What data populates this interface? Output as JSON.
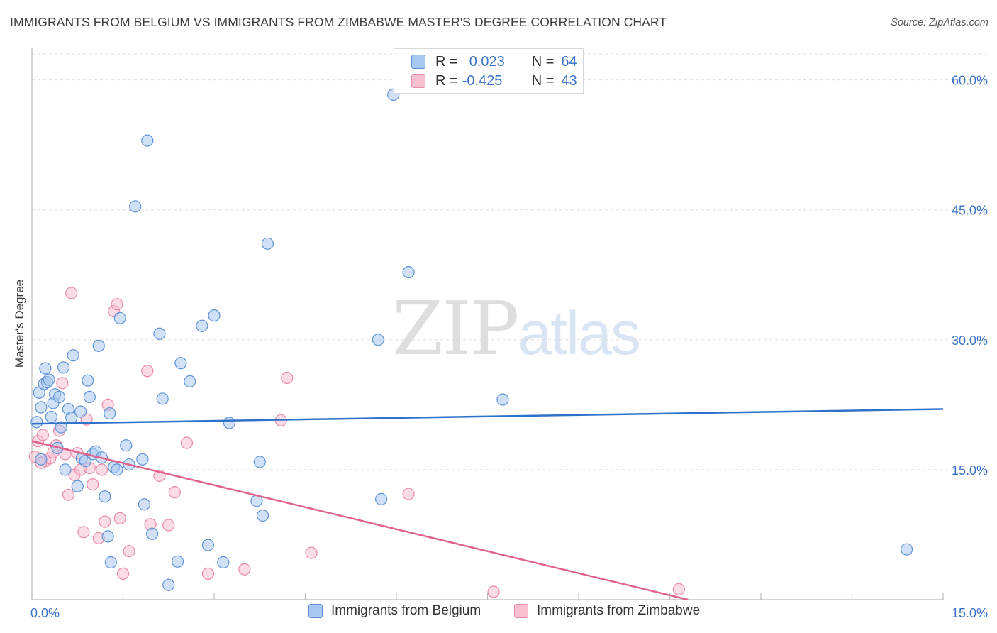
{
  "title": "IMMIGRANTS FROM BELGIUM VS IMMIGRANTS FROM ZIMBABWE MASTER'S DEGREE CORRELATION CHART",
  "source": "Source: ZipAtlas.com",
  "watermark": {
    "zip": "ZIP",
    "atlas": "atlas"
  },
  "legend": {
    "belgium": {
      "r_label": "R =",
      "r_value": "0.023",
      "n_label": "N =",
      "n_value": "64"
    },
    "zimbabwe": {
      "r_label": "R =",
      "r_value": "-0.425",
      "n_label": "N =",
      "n_value": "43"
    }
  },
  "colors": {
    "belgium_fill": "#a9c8f0",
    "belgium_stroke": "#5f93d6",
    "belgium_line": "#2f72c9",
    "zimbabwe_fill": "#f7bfd0",
    "zimbabwe_stroke": "#e98aa8",
    "zimbabwe_line": "#e0638e",
    "tick_label": "#3a72c6",
    "grid": "#dddddd"
  },
  "chart_data": {
    "type": "scatter",
    "title": "IMMIGRANTS FROM BELGIUM VS IMMIGRANTS FROM ZIMBABWE MASTER'S DEGREE CORRELATION CHART",
    "xlabel": "",
    "ylabel": "Master's Degree",
    "xlim": [
      0,
      15
    ],
    "ylim": [
      0,
      63
    ],
    "x_tick_labels": [
      "0.0%",
      "15.0%"
    ],
    "y_ticks": [
      15,
      30,
      45,
      60
    ],
    "y_tick_labels": [
      "15.0%",
      "30.0%",
      "45.0%",
      "60.0%"
    ],
    "series": [
      {
        "name": "Immigrants from Belgium",
        "R": 0.023,
        "N": 64,
        "trend": {
          "x": [
            0,
            15
          ],
          "y": [
            20.3,
            22.0
          ]
        },
        "points": [
          [
            0.08,
            20.5
          ],
          [
            0.12,
            23.9
          ],
          [
            0.15,
            22.2
          ],
          [
            0.2,
            24.9
          ],
          [
            0.22,
            26.7
          ],
          [
            0.25,
            25.1
          ],
          [
            0.28,
            25.4
          ],
          [
            0.32,
            21.1
          ],
          [
            0.35,
            22.7
          ],
          [
            0.38,
            23.7
          ],
          [
            0.42,
            17.5
          ],
          [
            0.45,
            23.4
          ],
          [
            0.48,
            19.9
          ],
          [
            0.52,
            26.8
          ],
          [
            0.55,
            15.0
          ],
          [
            0.6,
            22.0
          ],
          [
            0.65,
            21.0
          ],
          [
            0.68,
            28.2
          ],
          [
            0.75,
            13.1
          ],
          [
            0.8,
            21.7
          ],
          [
            0.82,
            16.3
          ],
          [
            0.88,
            16.0
          ],
          [
            0.92,
            25.3
          ],
          [
            0.95,
            23.4
          ],
          [
            1.0,
            16.8
          ],
          [
            1.05,
            17.1
          ],
          [
            1.1,
            29.3
          ],
          [
            1.15,
            16.4
          ],
          [
            1.2,
            11.9
          ],
          [
            1.25,
            7.3
          ],
          [
            1.28,
            21.5
          ],
          [
            1.3,
            4.3
          ],
          [
            1.35,
            15.3
          ],
          [
            1.4,
            15.0
          ],
          [
            1.45,
            32.5
          ],
          [
            1.55,
            17.8
          ],
          [
            1.6,
            15.6
          ],
          [
            1.7,
            45.4
          ],
          [
            1.82,
            16.2
          ],
          [
            1.85,
            11.0
          ],
          [
            1.9,
            53.0
          ],
          [
            1.98,
            7.6
          ],
          [
            2.1,
            30.7
          ],
          [
            2.15,
            23.2
          ],
          [
            2.25,
            1.7
          ],
          [
            2.4,
            4.4
          ],
          [
            2.45,
            27.3
          ],
          [
            2.6,
            25.2
          ],
          [
            2.8,
            31.6
          ],
          [
            2.9,
            6.3
          ],
          [
            3.0,
            32.8
          ],
          [
            3.15,
            4.3
          ],
          [
            3.25,
            20.4
          ],
          [
            3.7,
            11.4
          ],
          [
            3.75,
            15.9
          ],
          [
            3.8,
            9.7
          ],
          [
            3.88,
            41.1
          ],
          [
            0.15,
            16.2
          ],
          [
            5.7,
            30.0
          ],
          [
            5.75,
            11.6
          ],
          [
            5.95,
            58.3
          ],
          [
            6.2,
            37.8
          ],
          [
            7.75,
            23.1
          ],
          [
            14.4,
            5.8
          ]
        ]
      },
      {
        "name": "Immigrants from Zimbabwe",
        "R": -0.425,
        "N": 43,
        "trend": {
          "x": [
            0,
            10.8
          ],
          "y": [
            18.3,
            0
          ]
        },
        "points": [
          [
            0.05,
            16.5
          ],
          [
            0.1,
            18.3
          ],
          [
            0.18,
            19.0
          ],
          [
            0.22,
            16.0
          ],
          [
            0.3,
            16.3
          ],
          [
            0.35,
            17.0
          ],
          [
            0.4,
            17.8
          ],
          [
            0.45,
            19.5
          ],
          [
            0.5,
            25.0
          ],
          [
            0.55,
            16.8
          ],
          [
            0.6,
            12.1
          ],
          [
            0.65,
            35.4
          ],
          [
            0.7,
            14.4
          ],
          [
            0.75,
            16.9
          ],
          [
            0.8,
            15.0
          ],
          [
            0.85,
            7.8
          ],
          [
            0.9,
            20.8
          ],
          [
            0.95,
            15.2
          ],
          [
            1.0,
            13.3
          ],
          [
            1.1,
            7.1
          ],
          [
            1.15,
            15.0
          ],
          [
            1.2,
            9.0
          ],
          [
            1.25,
            22.5
          ],
          [
            1.35,
            33.3
          ],
          [
            1.4,
            34.1
          ],
          [
            1.45,
            9.4
          ],
          [
            1.5,
            3.0
          ],
          [
            1.6,
            5.6
          ],
          [
            1.9,
            26.4
          ],
          [
            1.95,
            8.7
          ],
          [
            2.1,
            14.3
          ],
          [
            2.25,
            8.6
          ],
          [
            2.35,
            12.4
          ],
          [
            2.55,
            18.1
          ],
          [
            2.9,
            3.0
          ],
          [
            3.5,
            3.5
          ],
          [
            4.1,
            20.7
          ],
          [
            4.2,
            25.6
          ],
          [
            4.6,
            5.4
          ],
          [
            6.2,
            12.2
          ],
          [
            7.6,
            0.9
          ],
          [
            10.65,
            1.2
          ],
          [
            0.15,
            15.8
          ]
        ]
      }
    ],
    "legend_position": "top-center"
  }
}
